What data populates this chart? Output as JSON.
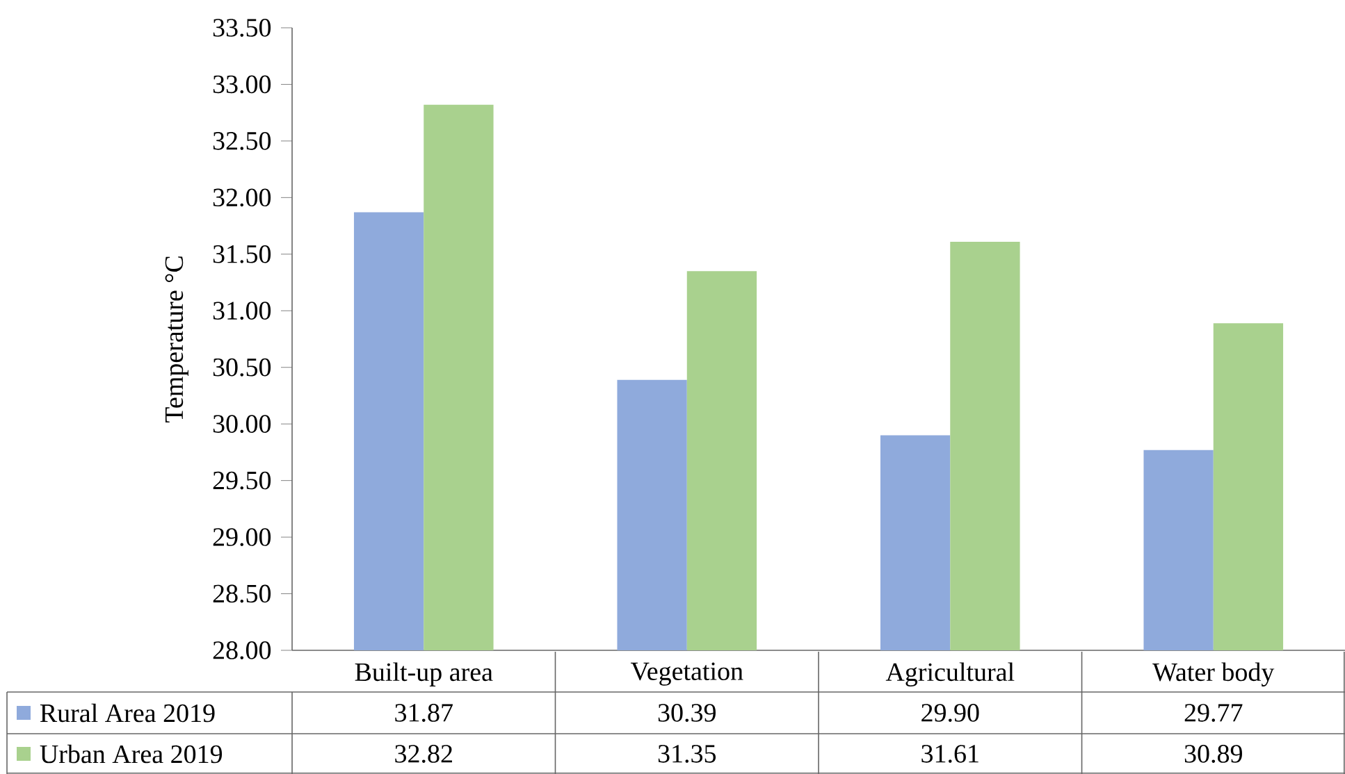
{
  "chart_data": {
    "type": "bar",
    "ylabel": "Temperature °C",
    "categories": [
      "Built-up area",
      "Vegetation",
      "Agricultural",
      "Water body"
    ],
    "series": [
      {
        "name": "Rural Area  2019",
        "color": "#8faadc",
        "values": [
          31.87,
          30.39,
          29.9,
          29.77
        ],
        "value_labels": [
          "31.87",
          "30.39",
          "29.90",
          "29.77"
        ]
      },
      {
        "name": "Urban Area 2019",
        "color": "#a9d18e",
        "values": [
          32.82,
          31.35,
          31.61,
          30.89
        ],
        "value_labels": [
          "32.82",
          "31.35",
          "31.61",
          "30.89"
        ]
      }
    ],
    "ylim": [
      28,
      33.5
    ],
    "yticks": [
      {
        "value": 28,
        "label": "28.00"
      },
      {
        "value": 28.5,
        "label": "28.50"
      },
      {
        "value": 29,
        "label": "29.00"
      },
      {
        "value": 29.5,
        "label": "29.50"
      },
      {
        "value": 30,
        "label": "30.00"
      },
      {
        "value": 30.5,
        "label": "30.50"
      },
      {
        "value": 31,
        "label": "31.00"
      },
      {
        "value": 31.5,
        "label": "31.50"
      },
      {
        "value": 32,
        "label": "32.00"
      },
      {
        "value": 32.5,
        "label": "32.50"
      },
      {
        "value": 33,
        "label": "33.00"
      },
      {
        "value": 33.5,
        "label": "33.50"
      }
    ],
    "grid": false,
    "legend": "bottom"
  }
}
